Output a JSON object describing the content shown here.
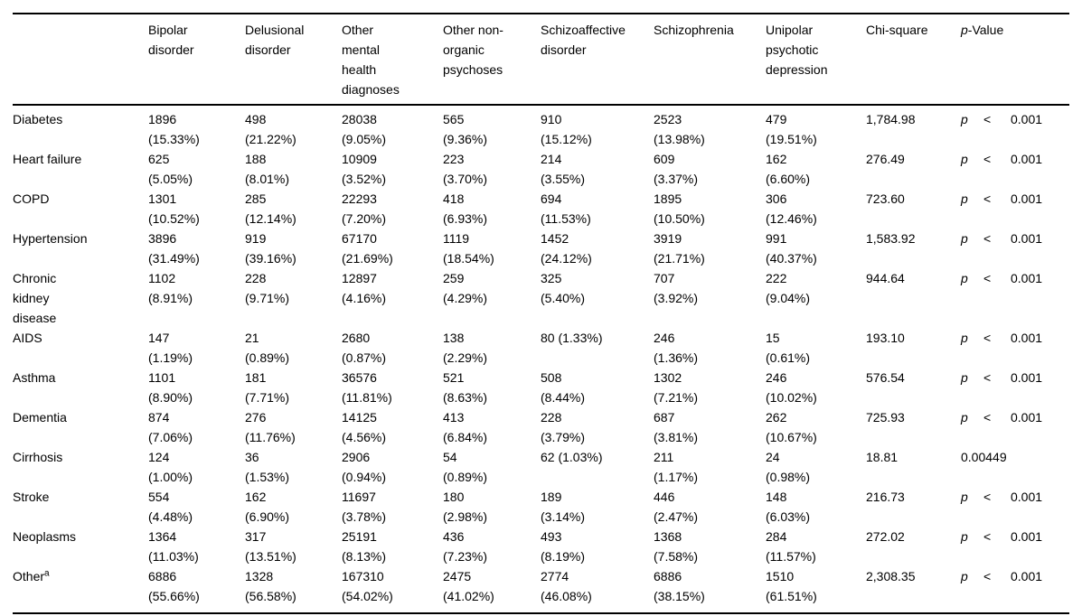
{
  "table": {
    "headers": [
      {
        "label": ""
      },
      {
        "label": "Bipolar disorder"
      },
      {
        "label": "Delusional disorder"
      },
      {
        "label": "Other mental health diagnoses"
      },
      {
        "label": "Other non-organic psychoses"
      },
      {
        "label": "Schizoaffective disorder"
      },
      {
        "label": "Schizophrenia"
      },
      {
        "label": "Unipolar psychotic depression"
      },
      {
        "label": "Chi-square"
      },
      {
        "italic_part": "p",
        "rest_part": "-Value"
      }
    ],
    "rows": [
      {
        "label": "Diabetes",
        "sup": "",
        "cells": [
          [
            "1896",
            "(15.33%)"
          ],
          [
            "498",
            "(21.22%)"
          ],
          [
            "28038",
            "(9.05%)"
          ],
          [
            "565",
            "(9.36%)"
          ],
          [
            "910",
            "(15.12%)"
          ],
          [
            "2523",
            "(13.98%)"
          ],
          [
            "479",
            "(19.51%)"
          ]
        ],
        "chi_square": "1,784.98",
        "p_symbol": "p",
        "p_operator": "<",
        "p_value": "0.001"
      },
      {
        "label": "Heart failure",
        "sup": "",
        "cells": [
          [
            "625",
            "(5.05%)"
          ],
          [
            "188",
            "(8.01%)"
          ],
          [
            "10909",
            "(3.52%)"
          ],
          [
            "223",
            "(3.70%)"
          ],
          [
            "214",
            "(3.55%)"
          ],
          [
            "609",
            "(3.37%)"
          ],
          [
            "162",
            "(6.60%)"
          ]
        ],
        "chi_square": "276.49",
        "p_symbol": "p",
        "p_operator": "<",
        "p_value": "0.001"
      },
      {
        "label": "COPD",
        "sup": "",
        "cells": [
          [
            "1301",
            "(10.52%)"
          ],
          [
            "285",
            "(12.14%)"
          ],
          [
            "22293",
            "(7.20%)"
          ],
          [
            "418",
            "(6.93%)"
          ],
          [
            "694",
            "(11.53%)"
          ],
          [
            "1895",
            "(10.50%)"
          ],
          [
            "306",
            "(12.46%)"
          ]
        ],
        "chi_square": "723.60",
        "p_symbol": "p",
        "p_operator": "<",
        "p_value": "0.001"
      },
      {
        "label": "Hypertension",
        "sup": "",
        "cells": [
          [
            "3896",
            "(31.49%)"
          ],
          [
            "919",
            "(39.16%)"
          ],
          [
            "67170",
            "(21.69%)"
          ],
          [
            "1119",
            "(18.54%)"
          ],
          [
            "1452",
            "(24.12%)"
          ],
          [
            "3919",
            "(21.71%)"
          ],
          [
            "991",
            "(40.37%)"
          ]
        ],
        "chi_square": "1,583.92",
        "p_symbol": "p",
        "p_operator": "<",
        "p_value": "0.001"
      },
      {
        "label": "Chronic kidney disease",
        "sup": "",
        "cells": [
          [
            "1102",
            "(8.91%)"
          ],
          [
            "228",
            "(9.71%)"
          ],
          [
            "12897",
            "(4.16%)"
          ],
          [
            "259",
            "(4.29%)"
          ],
          [
            "325",
            "(5.40%)"
          ],
          [
            "707",
            "(3.92%)"
          ],
          [
            "222",
            "(9.04%)"
          ]
        ],
        "chi_square": "944.64",
        "p_symbol": "p",
        "p_operator": "<",
        "p_value": "0.001"
      },
      {
        "label": "AIDS",
        "sup": "",
        "cells": [
          [
            "147",
            "(1.19%)"
          ],
          [
            "21",
            "(0.89%)"
          ],
          [
            "2680",
            "(0.87%)"
          ],
          [
            "138",
            "(2.29%)"
          ],
          [
            "80 (1.33%)",
            ""
          ],
          [
            "246",
            "(1.36%)"
          ],
          [
            "15",
            "(0.61%)"
          ]
        ],
        "chi_square": "193.10",
        "p_symbol": "p",
        "p_operator": "<",
        "p_value": "0.001"
      },
      {
        "label": "Asthma",
        "sup": "",
        "cells": [
          [
            "1101",
            "(8.90%)"
          ],
          [
            "181",
            "(7.71%)"
          ],
          [
            "36576",
            "(11.81%)"
          ],
          [
            "521",
            "(8.63%)"
          ],
          [
            "508",
            "(8.44%)"
          ],
          [
            "1302",
            "(7.21%)"
          ],
          [
            "246",
            "(10.02%)"
          ]
        ],
        "chi_square": "576.54",
        "p_symbol": "p",
        "p_operator": "<",
        "p_value": "0.001"
      },
      {
        "label": "Dementia",
        "sup": "",
        "cells": [
          [
            "874",
            "(7.06%)"
          ],
          [
            "276",
            "(11.76%)"
          ],
          [
            "14125",
            "(4.56%)"
          ],
          [
            "413",
            "(6.84%)"
          ],
          [
            "228",
            "(3.79%)"
          ],
          [
            "687",
            "(3.81%)"
          ],
          [
            "262",
            "(10.67%)"
          ]
        ],
        "chi_square": "725.93",
        "p_symbol": "p",
        "p_operator": "<",
        "p_value": "0.001"
      },
      {
        "label": "Cirrhosis",
        "sup": "",
        "cells": [
          [
            "124",
            "(1.00%)"
          ],
          [
            "36",
            "(1.53%)"
          ],
          [
            "2906",
            "(0.94%)"
          ],
          [
            "54",
            "(0.89%)"
          ],
          [
            "62 (1.03%)",
            ""
          ],
          [
            "211",
            "(1.17%)"
          ],
          [
            "24",
            "(0.98%)"
          ]
        ],
        "chi_square": "18.81",
        "p_symbol": "",
        "p_operator": "",
        "p_value": "0.00449"
      },
      {
        "label": "Stroke",
        "sup": "",
        "cells": [
          [
            "554",
            "(4.48%)"
          ],
          [
            "162",
            "(6.90%)"
          ],
          [
            "11697",
            "(3.78%)"
          ],
          [
            "180",
            "(2.98%)"
          ],
          [
            "189",
            "(3.14%)"
          ],
          [
            "446",
            "(2.47%)"
          ],
          [
            "148",
            "(6.03%)"
          ]
        ],
        "chi_square": "216.73",
        "p_symbol": "p",
        "p_operator": "<",
        "p_value": "0.001"
      },
      {
        "label": "Neoplasms",
        "sup": "",
        "cells": [
          [
            "1364",
            "(11.03%)"
          ],
          [
            "317",
            "(13.51%)"
          ],
          [
            "25191",
            "(8.13%)"
          ],
          [
            "436",
            "(7.23%)"
          ],
          [
            "493",
            "(8.19%)"
          ],
          [
            "1368",
            "(7.58%)"
          ],
          [
            "284",
            "(11.57%)"
          ]
        ],
        "chi_square": "272.02",
        "p_symbol": "p",
        "p_operator": "<",
        "p_value": "0.001"
      },
      {
        "label": "Other",
        "sup": "a",
        "cells": [
          [
            "6886",
            "(55.66%)"
          ],
          [
            "1328",
            "(56.58%)"
          ],
          [
            "167310",
            "(54.02%)"
          ],
          [
            "2475",
            "(41.02%)"
          ],
          [
            "2774",
            "(46.08%)"
          ],
          [
            "6886",
            "(38.15%)"
          ],
          [
            "1510",
            "(61.51%)"
          ]
        ],
        "chi_square": "2,308.35",
        "p_symbol": "p",
        "p_operator": "<",
        "p_value": "0.001"
      }
    ]
  }
}
